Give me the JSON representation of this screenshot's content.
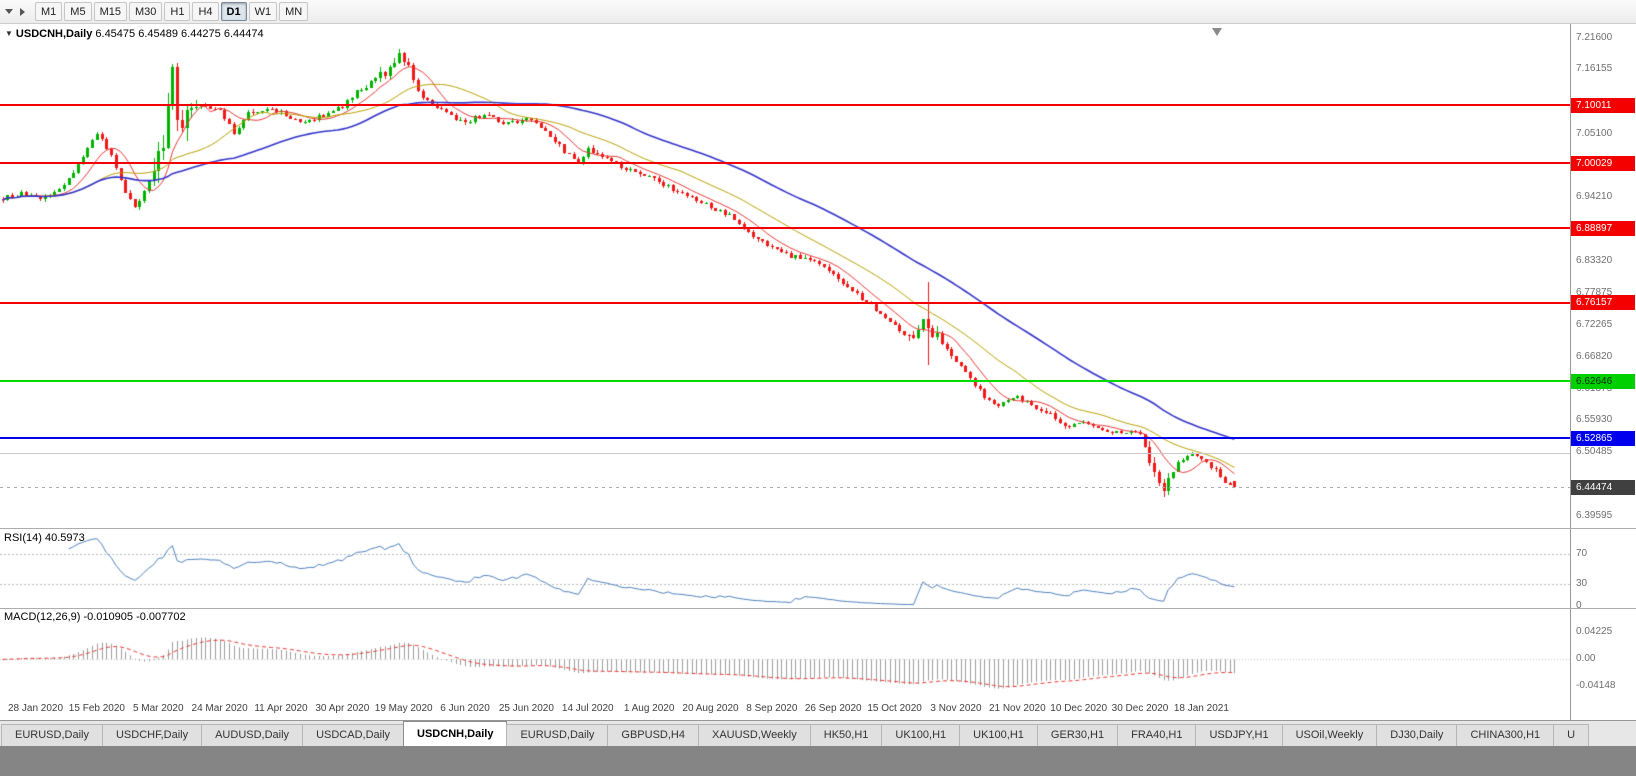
{
  "toolbar": {
    "timeframes": [
      {
        "label": "M1",
        "active": false
      },
      {
        "label": "M5",
        "active": false
      },
      {
        "label": "M15",
        "active": false
      },
      {
        "label": "M30",
        "active": false
      },
      {
        "label": "H1",
        "active": false
      },
      {
        "label": "H4",
        "active": false
      },
      {
        "label": "D1",
        "active": true
      },
      {
        "label": "W1",
        "active": false
      },
      {
        "label": "MN",
        "active": false
      }
    ]
  },
  "chart": {
    "title": "USDCNH,Daily",
    "ohlc_text": "6.45475 6.45489 6.44275 6.44474",
    "open": "6.45475",
    "high": "6.45489",
    "low": "6.44275",
    "close": "6.44474",
    "current_price": {
      "label": "6.44474",
      "value": 6.44474
    },
    "axis_labels": [
      {
        "label": "7.21600",
        "value": 7.216
      },
      {
        "label": "7.16155",
        "value": 7.16155
      },
      {
        "label": "7.05100",
        "value": 7.051
      },
      {
        "label": "6.94210",
        "value": 6.9421
      },
      {
        "label": "6.83320",
        "value": 6.8332
      },
      {
        "label": "6.77875",
        "value": 6.77875
      },
      {
        "label": "6.72265",
        "value": 6.72265
      },
      {
        "label": "6.66820",
        "value": 6.6682
      },
      {
        "label": "6.61375",
        "value": 6.61375
      },
      {
        "label": "6.55930",
        "value": 6.5593
      },
      {
        "label": "6.50485",
        "value": 6.50485
      },
      {
        "label": "6.39595",
        "value": 6.39595
      }
    ],
    "hlines": [
      {
        "label": "7.10011",
        "value": 7.10011,
        "color": "#f40000",
        "width": 2,
        "badge_bg": "#f40000",
        "badge_fg": "#ffffff"
      },
      {
        "label": "7.00029",
        "value": 7.00029,
        "color": "#f40000",
        "width": 2,
        "badge_bg": "#f40000",
        "badge_fg": "#ffffff"
      },
      {
        "label": "6.88897",
        "value": 6.88897,
        "color": "#f40000",
        "width": 2,
        "badge_bg": "#f40000",
        "badge_fg": "#ffffff"
      },
      {
        "label": "6.76157",
        "value": 6.76157,
        "color": "#f40000",
        "width": 2,
        "badge_bg": "#f40000",
        "badge_fg": "#ffffff"
      },
      {
        "label": "6.62646",
        "value": 6.62646,
        "color": "#00dc00",
        "width": 2,
        "badge_bg": "#00d000",
        "badge_fg": "#002b00"
      },
      {
        "label": "6.52865",
        "value": 6.52865,
        "color": "#0000ee",
        "width": 2,
        "badge_bg": "#0000ee",
        "badge_fg": "#ffffff"
      },
      {
        "label": null,
        "value": 6.503,
        "color": "#c9c9c9",
        "width": 1,
        "badge_bg": null,
        "badge_fg": null
      }
    ],
    "rsi": {
      "label": "RSI(14) 40.5973",
      "levels": [
        {
          "label": "70",
          "value": 70
        },
        {
          "label": "30",
          "value": 30
        },
        {
          "label": "0",
          "value": 0
        }
      ]
    },
    "macd": {
      "label": "MACD(12,26,9) -0.010905 -0.007702",
      "levels": [
        {
          "label": "0.04225",
          "value": 0.04225
        },
        {
          "label": "0.00",
          "value": 0
        },
        {
          "label": "-0.04148",
          "value": -0.04148
        }
      ]
    },
    "dates": [
      "28 Jan 2020",
      "15 Feb 2020",
      "5 Mar 2020",
      "24 Mar 2020",
      "11 Apr 2020",
      "30 Apr 2020",
      "19 May 2020",
      "6 Jun 2020",
      "25 Jun 2020",
      "14 Jul 2020",
      "1 Aug 2020",
      "20 Aug 2020",
      "8 Sep 2020",
      "26 Sep 2020",
      "15 Oct 2020",
      "3 Nov 2020",
      "21 Nov 2020",
      "10 Dec 2020",
      "30 Dec 2020",
      "18 Jan 2021"
    ]
  },
  "chart_data": {
    "type": "candlestick",
    "symbol": "USDCNH",
    "period": "Daily",
    "ylim": [
      6.38,
      7.236
    ],
    "num_candles": 262,
    "last_candle": {
      "open": 6.45475,
      "high": 6.45489,
      "low": 6.44275,
      "close": 6.44474
    },
    "price_anchors": [
      [
        0,
        6.94
      ],
      [
        4,
        6.948
      ],
      [
        8,
        6.938
      ],
      [
        13,
        6.962
      ],
      [
        16,
        6.998
      ],
      [
        20,
        7.052
      ],
      [
        23,
        7.012
      ],
      [
        26,
        6.952
      ],
      [
        28,
        6.922
      ],
      [
        31,
        6.968
      ],
      [
        33,
        7.01
      ],
      [
        34,
        7.045
      ],
      [
        35,
        7.1
      ],
      [
        36,
        7.15
      ],
      [
        37,
        7.09
      ],
      [
        38,
        7.072
      ],
      [
        39,
        7.108
      ],
      [
        40,
        7.095
      ],
      [
        43,
        7.098
      ],
      [
        46,
        7.09
      ],
      [
        49,
        7.052
      ],
      [
        52,
        7.088
      ],
      [
        56,
        7.094
      ],
      [
        59,
        7.088
      ],
      [
        63,
        7.068
      ],
      [
        67,
        7.08
      ],
      [
        72,
        7.098
      ],
      [
        75,
        7.122
      ],
      [
        78,
        7.138
      ],
      [
        82,
        7.162
      ],
      [
        84,
        7.19
      ],
      [
        86,
        7.172
      ],
      [
        88,
        7.122
      ],
      [
        91,
        7.1
      ],
      [
        95,
        7.082
      ],
      [
        98,
        7.07
      ],
      [
        102,
        7.086
      ],
      [
        106,
        7.068
      ],
      [
        111,
        7.076
      ],
      [
        115,
        7.058
      ],
      [
        119,
        7.02
      ],
      [
        122,
        7.002
      ],
      [
        124,
        7.024
      ],
      [
        128,
        7.01
      ],
      [
        132,
        6.99
      ],
      [
        137,
        6.976
      ],
      [
        141,
        6.96
      ],
      [
        145,
        6.944
      ],
      [
        150,
        6.926
      ],
      [
        154,
        6.91
      ],
      [
        158,
        6.88
      ],
      [
        163,
        6.856
      ],
      [
        167,
        6.842
      ],
      [
        171,
        6.836
      ],
      [
        176,
        6.81
      ],
      [
        180,
        6.782
      ],
      [
        184,
        6.756
      ],
      [
        188,
        6.732
      ],
      [
        192,
        6.7
      ],
      [
        195,
        6.726
      ],
      [
        198,
        6.702
      ],
      [
        202,
        6.662
      ],
      [
        205,
        6.632
      ],
      [
        208,
        6.6
      ],
      [
        211,
        6.586
      ],
      [
        215,
        6.6
      ],
      [
        218,
        6.586
      ],
      [
        222,
        6.57
      ],
      [
        226,
        6.546
      ],
      [
        228,
        6.556
      ],
      [
        232,
        6.546
      ],
      [
        236,
        6.54
      ],
      [
        241,
        6.54
      ],
      [
        244,
        6.472
      ],
      [
        246,
        6.446
      ],
      [
        249,
        6.49
      ],
      [
        252,
        6.5
      ],
      [
        254,
        6.49
      ],
      [
        257,
        6.476
      ],
      [
        259,
        6.455
      ],
      [
        261,
        6.44474
      ]
    ],
    "base_volatility": 0.005,
    "volatility_zones": [
      [
        32,
        41,
        0.026
      ],
      [
        80,
        87,
        0.01
      ],
      [
        192,
        199,
        0.014
      ],
      [
        242,
        248,
        0.011
      ]
    ],
    "special_candles": [
      {
        "index": 196,
        "high": 6.796,
        "low": 6.654
      },
      {
        "index": 246,
        "low": 6.428
      }
    ],
    "moving_averages": [
      {
        "period": 8,
        "color": "#e53935",
        "width": 1
      },
      {
        "period": 21,
        "color": "#b8a000",
        "width": 1
      },
      {
        "period": 50,
        "color": "#3434c8",
        "width": 1.6
      }
    ],
    "rsi_period": 14,
    "macd_params": [
      12,
      26,
      9
    ]
  },
  "colors": {
    "bull": "#00b200",
    "bear": "#f01818",
    "rsi_line": "#4f81bd",
    "rsi_level": "#bdbdbd",
    "macd_hist": "#9c9c9c",
    "macd_signal": "#e53935",
    "macd_zero": "#c8c8c8",
    "axis_text": "#6e6e6e",
    "date_text": "#3f3f3f",
    "current_badge_bg": "#404040",
    "current_badge_fg": "#ffffff"
  },
  "tabs": [
    {
      "label": "EURUSD,Daily",
      "active": false
    },
    {
      "label": "USDCHF,Daily",
      "active": false
    },
    {
      "label": "AUDUSD,Daily",
      "active": false
    },
    {
      "label": "USDCAD,Daily",
      "active": false
    },
    {
      "label": "USDCNH,Daily",
      "active": true
    },
    {
      "label": "EURUSD,Daily",
      "active": false
    },
    {
      "label": "GBPUSD,H4",
      "active": false
    },
    {
      "label": "XAUUSD,Weekly",
      "active": false
    },
    {
      "label": "HK50,H1",
      "active": false
    },
    {
      "label": "UK100,H1",
      "active": false
    },
    {
      "label": "UK100,H1",
      "active": false
    },
    {
      "label": "GER30,H1",
      "active": false
    },
    {
      "label": "FRA40,H1",
      "active": false
    },
    {
      "label": "USDJPY,H1",
      "active": false
    },
    {
      "label": "USOil,Weekly",
      "active": false
    },
    {
      "label": "DJ30,Daily",
      "active": false
    },
    {
      "label": "CHINA300,H1",
      "active": false
    },
    {
      "label": "U",
      "active": false
    }
  ]
}
